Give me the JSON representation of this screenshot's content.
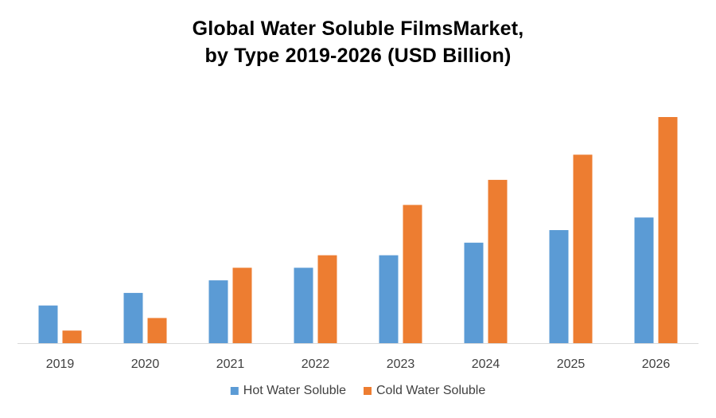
{
  "chart_data": {
    "type": "bar",
    "title_lines": [
      "Global Water Soluble FilmsMarket,",
      "by Type 2019-2026 (USD Billion)"
    ],
    "categories": [
      "2019",
      "2020",
      "2021",
      "2022",
      "2023",
      "2024",
      "2025",
      "2026"
    ],
    "series": [
      {
        "name": "Hot Water Soluble",
        "color": "#5b9bd5",
        "values": [
          1.5,
          2.0,
          2.5,
          3.0,
          3.5,
          4.0,
          4.5,
          5.0
        ]
      },
      {
        "name": "Cold Water Soluble",
        "color": "#ed7d31",
        "values": [
          0.5,
          1.0,
          3.0,
          3.5,
          5.5,
          6.5,
          7.5,
          9.0
        ]
      }
    ],
    "xlabel": "",
    "ylabel": "",
    "ylim": [
      0,
      9.0
    ],
    "legend_position": "bottom",
    "grid": false
  }
}
